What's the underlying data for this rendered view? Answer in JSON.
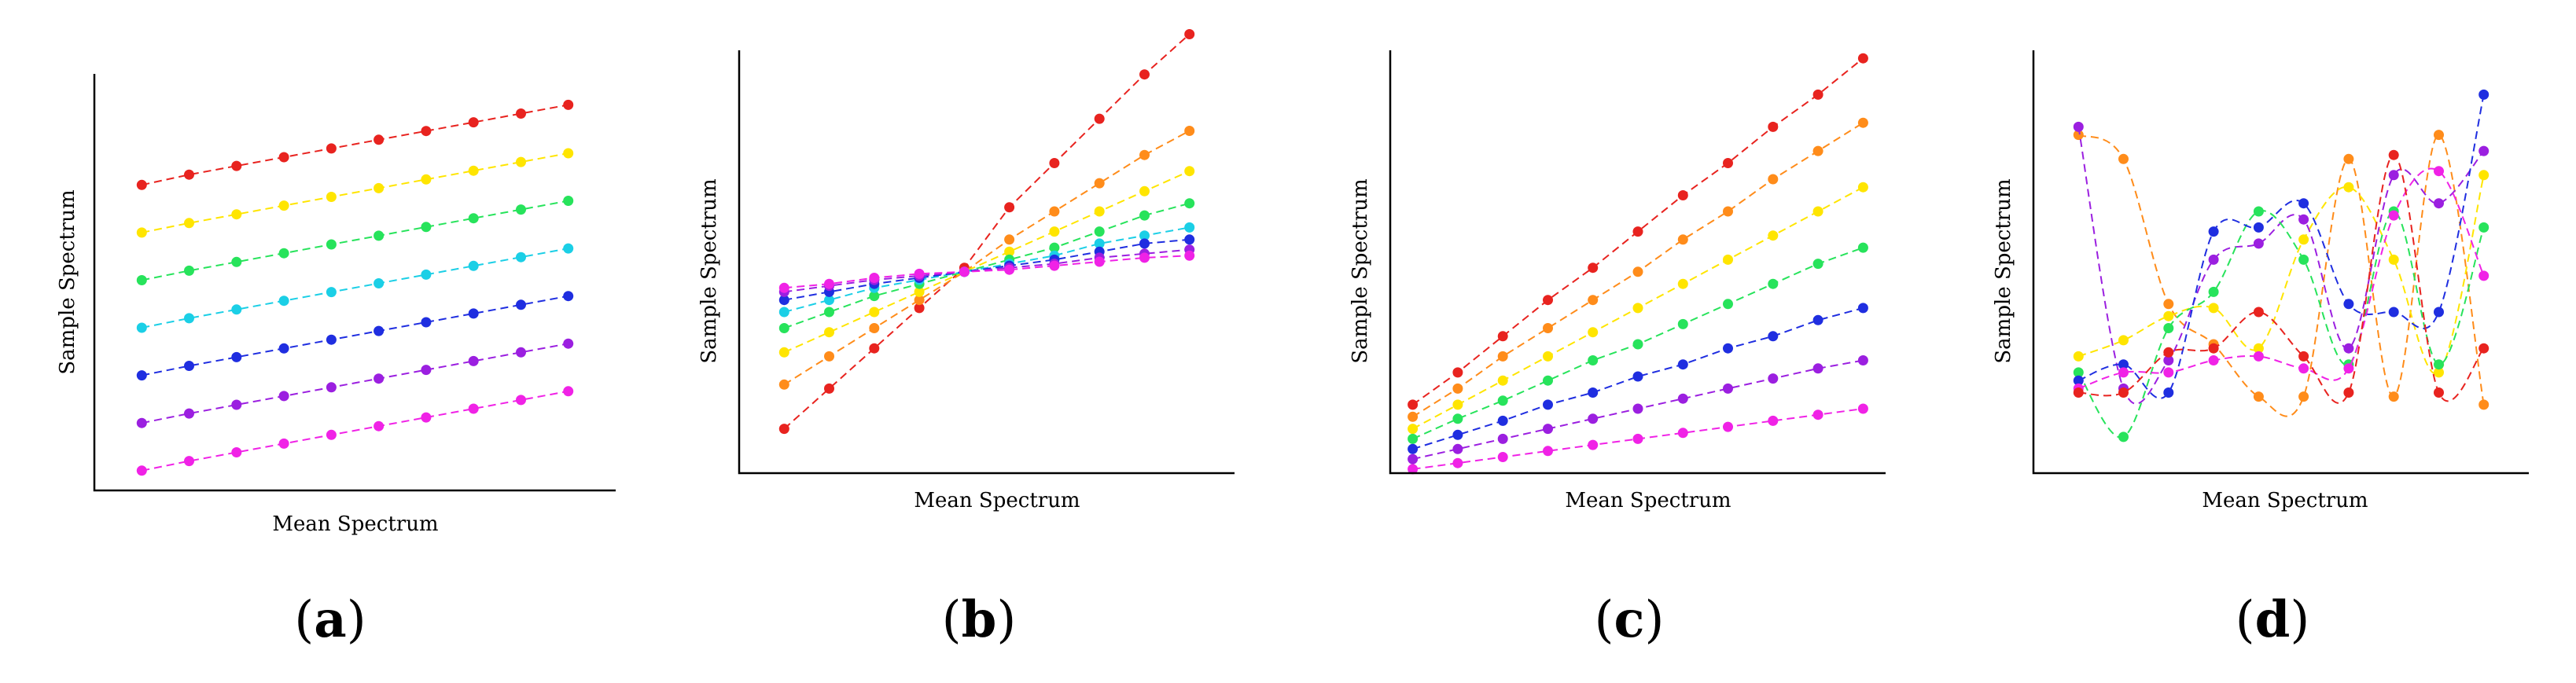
{
  "chart_data": [
    {
      "id": "a",
      "type": "scatter",
      "label": "a",
      "xlabel": "Mean Spectrum",
      "ylabel": "Sample Spectrum",
      "title": "",
      "grid": false,
      "curve": "linear",
      "xlim": [
        0,
        11
      ],
      "ylim": [
        0,
        10.5
      ],
      "x": [
        1,
        2,
        3,
        4,
        5,
        6,
        7,
        8,
        9,
        10
      ],
      "series": [
        {
          "name": "red",
          "color": "#e8231f",
          "values": [
            7.7,
            7.96,
            8.18,
            8.4,
            8.62,
            8.84,
            9.06,
            9.28,
            9.5,
            9.72
          ]
        },
        {
          "name": "yellow",
          "color": "#ffe500",
          "values": [
            6.5,
            6.74,
            6.96,
            7.18,
            7.4,
            7.62,
            7.84,
            8.06,
            8.28,
            8.5
          ]
        },
        {
          "name": "green",
          "color": "#27e35b",
          "values": [
            5.3,
            5.54,
            5.76,
            5.98,
            6.2,
            6.42,
            6.64,
            6.86,
            7.08,
            7.3
          ]
        },
        {
          "name": "cyan",
          "color": "#1bcfe6",
          "values": [
            4.1,
            4.34,
            4.56,
            4.78,
            5.0,
            5.22,
            5.44,
            5.66,
            5.88,
            6.1
          ]
        },
        {
          "name": "blue",
          "color": "#1f2ee0",
          "values": [
            2.9,
            3.14,
            3.36,
            3.58,
            3.8,
            4.02,
            4.24,
            4.46,
            4.68,
            4.9
          ]
        },
        {
          "name": "purple",
          "color": "#9b1fe0",
          "values": [
            1.7,
            1.94,
            2.16,
            2.38,
            2.6,
            2.82,
            3.04,
            3.26,
            3.48,
            3.7
          ]
        },
        {
          "name": "magenta",
          "color": "#f022e6",
          "values": [
            0.5,
            0.74,
            0.96,
            1.18,
            1.4,
            1.62,
            1.84,
            2.06,
            2.28,
            2.5
          ]
        }
      ]
    },
    {
      "id": "b",
      "type": "scatter",
      "label": "b",
      "xlabel": "Mean Spectrum",
      "ylabel": "Sample Spectrum",
      "title": "",
      "grid": false,
      "curve": "linear",
      "xlim": [
        0,
        11
      ],
      "ylim": [
        0,
        10.5
      ],
      "x": [
        1,
        2,
        3,
        4,
        5,
        6,
        7,
        8,
        9,
        10
      ],
      "series": [
        {
          "name": "red",
          "color": "#e8231f",
          "values": [
            1.1,
            2.1,
            3.1,
            4.1,
            5.1,
            6.6,
            7.7,
            8.8,
            9.9,
            10.9
          ]
        },
        {
          "name": "orange",
          "color": "#ff8c1a",
          "values": [
            2.2,
            2.9,
            3.6,
            4.3,
            5.0,
            5.8,
            6.5,
            7.2,
            7.9,
            8.5
          ]
        },
        {
          "name": "yellow",
          "color": "#ffe500",
          "values": [
            3.0,
            3.5,
            4.0,
            4.5,
            5.0,
            5.5,
            6.0,
            6.5,
            7.0,
            7.5
          ]
        },
        {
          "name": "green",
          "color": "#27e35b",
          "values": [
            3.6,
            4.0,
            4.4,
            4.7,
            5.0,
            5.3,
            5.6,
            6.0,
            6.4,
            6.7
          ]
        },
        {
          "name": "cyan",
          "color": "#1bcfe6",
          "values": [
            4.0,
            4.3,
            4.6,
            4.8,
            5.0,
            5.2,
            5.4,
            5.7,
            5.9,
            6.1
          ]
        },
        {
          "name": "blue",
          "color": "#1f2ee0",
          "values": [
            4.3,
            4.5,
            4.7,
            4.85,
            5.0,
            5.15,
            5.3,
            5.5,
            5.7,
            5.8
          ]
        },
        {
          "name": "purple",
          "color": "#9b1fe0",
          "values": [
            4.5,
            4.65,
            4.8,
            4.9,
            5.0,
            5.1,
            5.2,
            5.35,
            5.45,
            5.55
          ]
        },
        {
          "name": "magenta",
          "color": "#f022e6",
          "values": [
            4.6,
            4.7,
            4.85,
            4.95,
            5.0,
            5.05,
            5.15,
            5.25,
            5.35,
            5.4
          ]
        }
      ]
    },
    {
      "id": "c",
      "type": "scatter",
      "label": "c",
      "xlabel": "Mean Spectrum",
      "ylabel": "Sample Spectrum",
      "title": "",
      "grid": false,
      "curve": "linear",
      "xlim": [
        0,
        11
      ],
      "ylim": [
        0,
        10.5
      ],
      "x": [
        0.5,
        1.5,
        2.5,
        3.5,
        4.5,
        5.5,
        6.5,
        7.5,
        8.5,
        9.5,
        10.5
      ],
      "series": [
        {
          "name": "red",
          "color": "#e8231f",
          "values": [
            1.7,
            2.5,
            3.4,
            4.3,
            5.1,
            6.0,
            6.9,
            7.7,
            8.6,
            9.4,
            10.3
          ]
        },
        {
          "name": "orange",
          "color": "#ff8c1a",
          "values": [
            1.4,
            2.1,
            2.9,
            3.6,
            4.3,
            5.0,
            5.8,
            6.5,
            7.3,
            8.0,
            8.7
          ]
        },
        {
          "name": "yellow",
          "color": "#ffe500",
          "values": [
            1.1,
            1.7,
            2.3,
            2.9,
            3.5,
            4.1,
            4.7,
            5.3,
            5.9,
            6.5,
            7.1
          ]
        },
        {
          "name": "green",
          "color": "#27e35b",
          "values": [
            0.85,
            1.35,
            1.8,
            2.3,
            2.8,
            3.2,
            3.7,
            4.2,
            4.7,
            5.2,
            5.6
          ]
        },
        {
          "name": "blue",
          "color": "#1f2ee0",
          "values": [
            0.6,
            0.95,
            1.3,
            1.7,
            2.0,
            2.4,
            2.7,
            3.1,
            3.4,
            3.8,
            4.1
          ]
        },
        {
          "name": "purple",
          "color": "#9b1fe0",
          "values": [
            0.35,
            0.6,
            0.85,
            1.1,
            1.35,
            1.6,
            1.85,
            2.1,
            2.35,
            2.6,
            2.8
          ]
        },
        {
          "name": "magenta",
          "color": "#f022e6",
          "values": [
            0.1,
            0.25,
            0.4,
            0.55,
            0.7,
            0.85,
            1.0,
            1.15,
            1.3,
            1.45,
            1.6
          ]
        }
      ]
    },
    {
      "id": "d",
      "type": "scatter",
      "label": "d",
      "xlabel": "Mean Spectrum",
      "ylabel": "Sample Spectrum",
      "title": "",
      "grid": false,
      "curve": "smooth",
      "xlim": [
        0,
        11
      ],
      "ylim": [
        0,
        10.5
      ],
      "x": [
        1,
        2,
        3,
        4,
        5,
        6,
        7,
        8,
        9,
        10
      ],
      "series": [
        {
          "name": "orange",
          "color": "#ff8c1a",
          "values": [
            8.4,
            7.8,
            4.2,
            3.2,
            1.9,
            1.9,
            7.8,
            1.9,
            8.4,
            1.7
          ]
        },
        {
          "name": "yellow",
          "color": "#ffe500",
          "values": [
            2.9,
            3.3,
            3.9,
            4.1,
            3.1,
            5.8,
            7.1,
            5.3,
            2.5,
            7.4
          ]
        },
        {
          "name": "purple",
          "color": "#9b1fe0",
          "values": [
            8.6,
            2.1,
            2.8,
            5.3,
            5.7,
            6.3,
            3.1,
            7.4,
            6.7,
            8.0
          ]
        },
        {
          "name": "green",
          "color": "#27e35b",
          "values": [
            2.5,
            0.9,
            3.6,
            4.5,
            6.5,
            5.3,
            2.7,
            6.5,
            2.7,
            6.1
          ]
        },
        {
          "name": "blue",
          "color": "#1f2ee0",
          "values": [
            2.3,
            2.7,
            2.0,
            6.0,
            6.1,
            6.7,
            4.2,
            4.0,
            4.0,
            9.4
          ]
        },
        {
          "name": "magenta",
          "color": "#f022e6",
          "values": [
            2.1,
            2.5,
            2.5,
            2.8,
            2.9,
            2.6,
            2.6,
            6.4,
            7.5,
            4.9
          ]
        },
        {
          "name": "red",
          "color": "#e8231f",
          "values": [
            2.0,
            2.0,
            3.0,
            3.1,
            4.0,
            2.9,
            2.0,
            7.9,
            2.0,
            3.1
          ]
        }
      ]
    }
  ]
}
